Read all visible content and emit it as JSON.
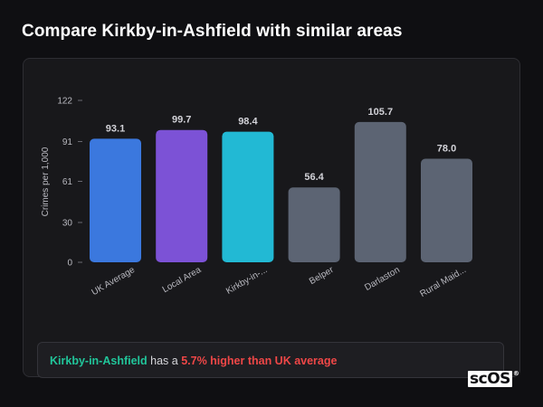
{
  "header": {
    "title": "Compare Kirkby-in-Ashfield with similar areas"
  },
  "chart_data": {
    "type": "bar",
    "title": "",
    "xlabel": "",
    "ylabel": "Crimes per 1,000",
    "ylim": [
      0,
      122
    ],
    "yticks": [
      0,
      30,
      61,
      91,
      122
    ],
    "categories": [
      "UK Average",
      "Local Area",
      "Kirkby-in-...",
      "Belper",
      "Darlaston",
      "Rural Maid..."
    ],
    "values": [
      93.1,
      99.7,
      98.4,
      56.4,
      105.7,
      78.0
    ],
    "value_labels": [
      "93.1",
      "99.7",
      "98.4",
      "56.4",
      "105.7",
      "78.0"
    ],
    "colors": [
      "#3b78de",
      "#7c52d6",
      "#22b9d4",
      "#5c6473",
      "#5c6473",
      "#5c6473"
    ],
    "grid": false
  },
  "summary": {
    "area": "Kirkby-in-Ashfield",
    "middle": " has a ",
    "difference": "5.7% higher than UK average"
  },
  "brand": {
    "logo_text": "scOS",
    "logo_mark": "®"
  }
}
